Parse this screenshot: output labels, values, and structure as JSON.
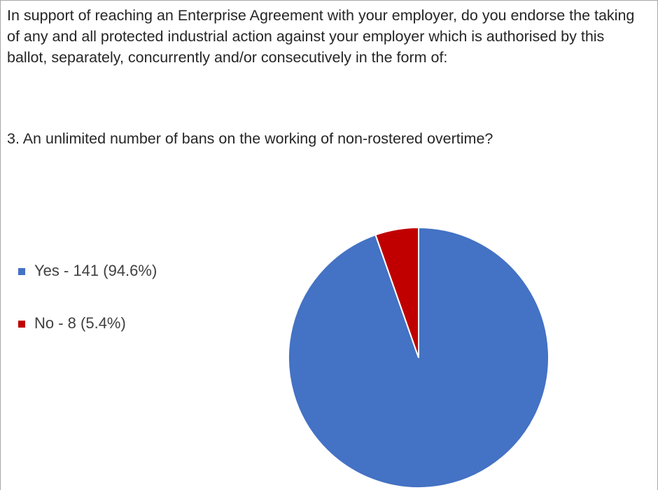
{
  "chart_data": {
    "type": "pie",
    "title": "In support of reaching an Enterprise Agreement with your employer, do you endorse the taking of any and all protected industrial action against your employer which is authorised by this ballot, separately, concurrently and/or consecutively in the form of:",
    "subtitle": "3. An unlimited number of bans on the working of non-rostered overtime?",
    "categories": [
      "Yes - 141 (94.6%)",
      "No - 8 (5.4%)"
    ],
    "values": [
      141,
      8
    ],
    "colors": [
      "#4472c4",
      "#c00000"
    ],
    "legend": "left"
  }
}
